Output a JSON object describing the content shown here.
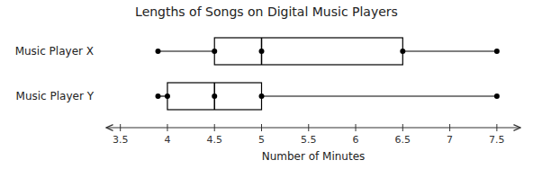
{
  "chart_data": {
    "type": "box",
    "title": "Lengths of Songs on Digital Music Players",
    "xlabel": "Number of Minutes",
    "orientation": "horizontal",
    "categories": [
      "Music Player X",
      "Music Player Y"
    ],
    "min": [
      3.9,
      3.9
    ],
    "q1": [
      4.5,
      4.0
    ],
    "median": [
      5.0,
      4.5
    ],
    "q3": [
      6.5,
      5.0
    ],
    "max": [
      7.5,
      7.5
    ],
    "color": "#000000",
    "xlim": [
      3.35,
      7.75
    ],
    "xticks": [
      3.5,
      4,
      4.5,
      5,
      5.5,
      6,
      6.5,
      7,
      7.5
    ]
  }
}
